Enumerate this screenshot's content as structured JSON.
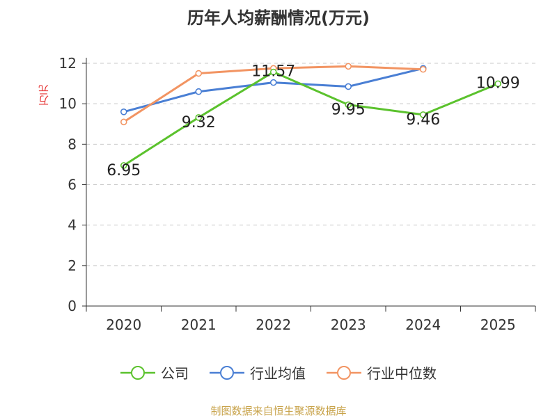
{
  "chart_data": {
    "type": "line",
    "title": "历年人均薪酬情况(万元)",
    "ylabel": "万元",
    "xlabel": "",
    "categories": [
      "2020",
      "2021",
      "2022",
      "2023",
      "2024",
      "2025"
    ],
    "ylim": [
      0,
      12
    ],
    "yticks": [
      0,
      2,
      4,
      6,
      8,
      10,
      12
    ],
    "grid": true,
    "legend_position": "bottom",
    "series": [
      {
        "name": "公司",
        "color": "#5bc22d",
        "values": [
          6.95,
          9.32,
          11.57,
          9.95,
          9.46,
          10.99
        ],
        "labels": [
          "6.95",
          "9.32",
          "11.57",
          "9.95",
          "9.46",
          "10.99"
        ]
      },
      {
        "name": "行业均值",
        "color": "#4a7fd4",
        "values": [
          9.6,
          10.6,
          11.05,
          10.85,
          11.75,
          null
        ]
      },
      {
        "name": "行业中位数",
        "color": "#f29462",
        "values": [
          9.1,
          11.5,
          11.75,
          11.85,
          11.7,
          null
        ]
      }
    ]
  },
  "footer": {
    "source": "制图数据来自恒生聚源数据库"
  }
}
